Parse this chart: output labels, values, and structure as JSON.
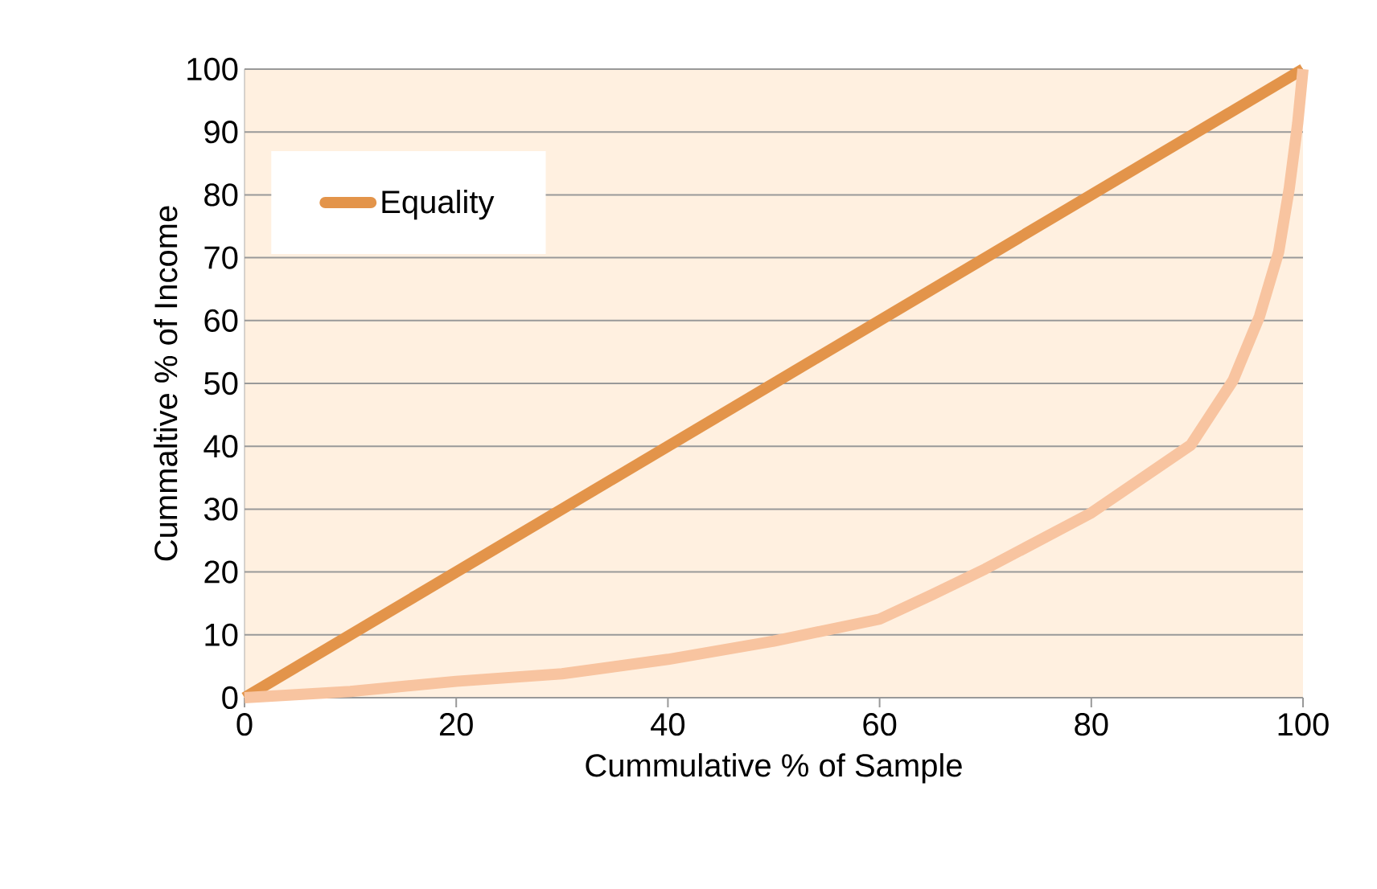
{
  "chart_data": {
    "type": "line",
    "xlabel": "Cummulative % of Sample",
    "ylabel": "Cummaltive % of Income",
    "series": [
      {
        "name": "Equality",
        "color": "#e3944a",
        "x": [
          0,
          100
        ],
        "values": [
          0,
          100
        ]
      },
      {
        "color": "#f8c4a0",
        "x": [
          0,
          10,
          20,
          30,
          40,
          50,
          60,
          65,
          70,
          80,
          89.4,
          93.4,
          95.9,
          97.7,
          98.7,
          99.5,
          100
        ],
        "values": [
          0,
          1,
          2.6,
          3.8,
          6.1,
          9,
          12.5,
          16.4,
          20.5,
          29.4,
          40.2,
          50.5,
          60.7,
          70.9,
          81,
          91.4,
          100
        ]
      }
    ],
    "xlim": [
      0,
      100
    ],
    "ylim": [
      0,
      100
    ],
    "xticks": [
      0,
      20,
      40,
      60,
      80,
      100
    ],
    "yticks": [
      0,
      10,
      20,
      30,
      40,
      50,
      60,
      70,
      80,
      90,
      100
    ],
    "grid": "y",
    "legend": "top left",
    "marker": "none",
    "line_style": "solid"
  }
}
